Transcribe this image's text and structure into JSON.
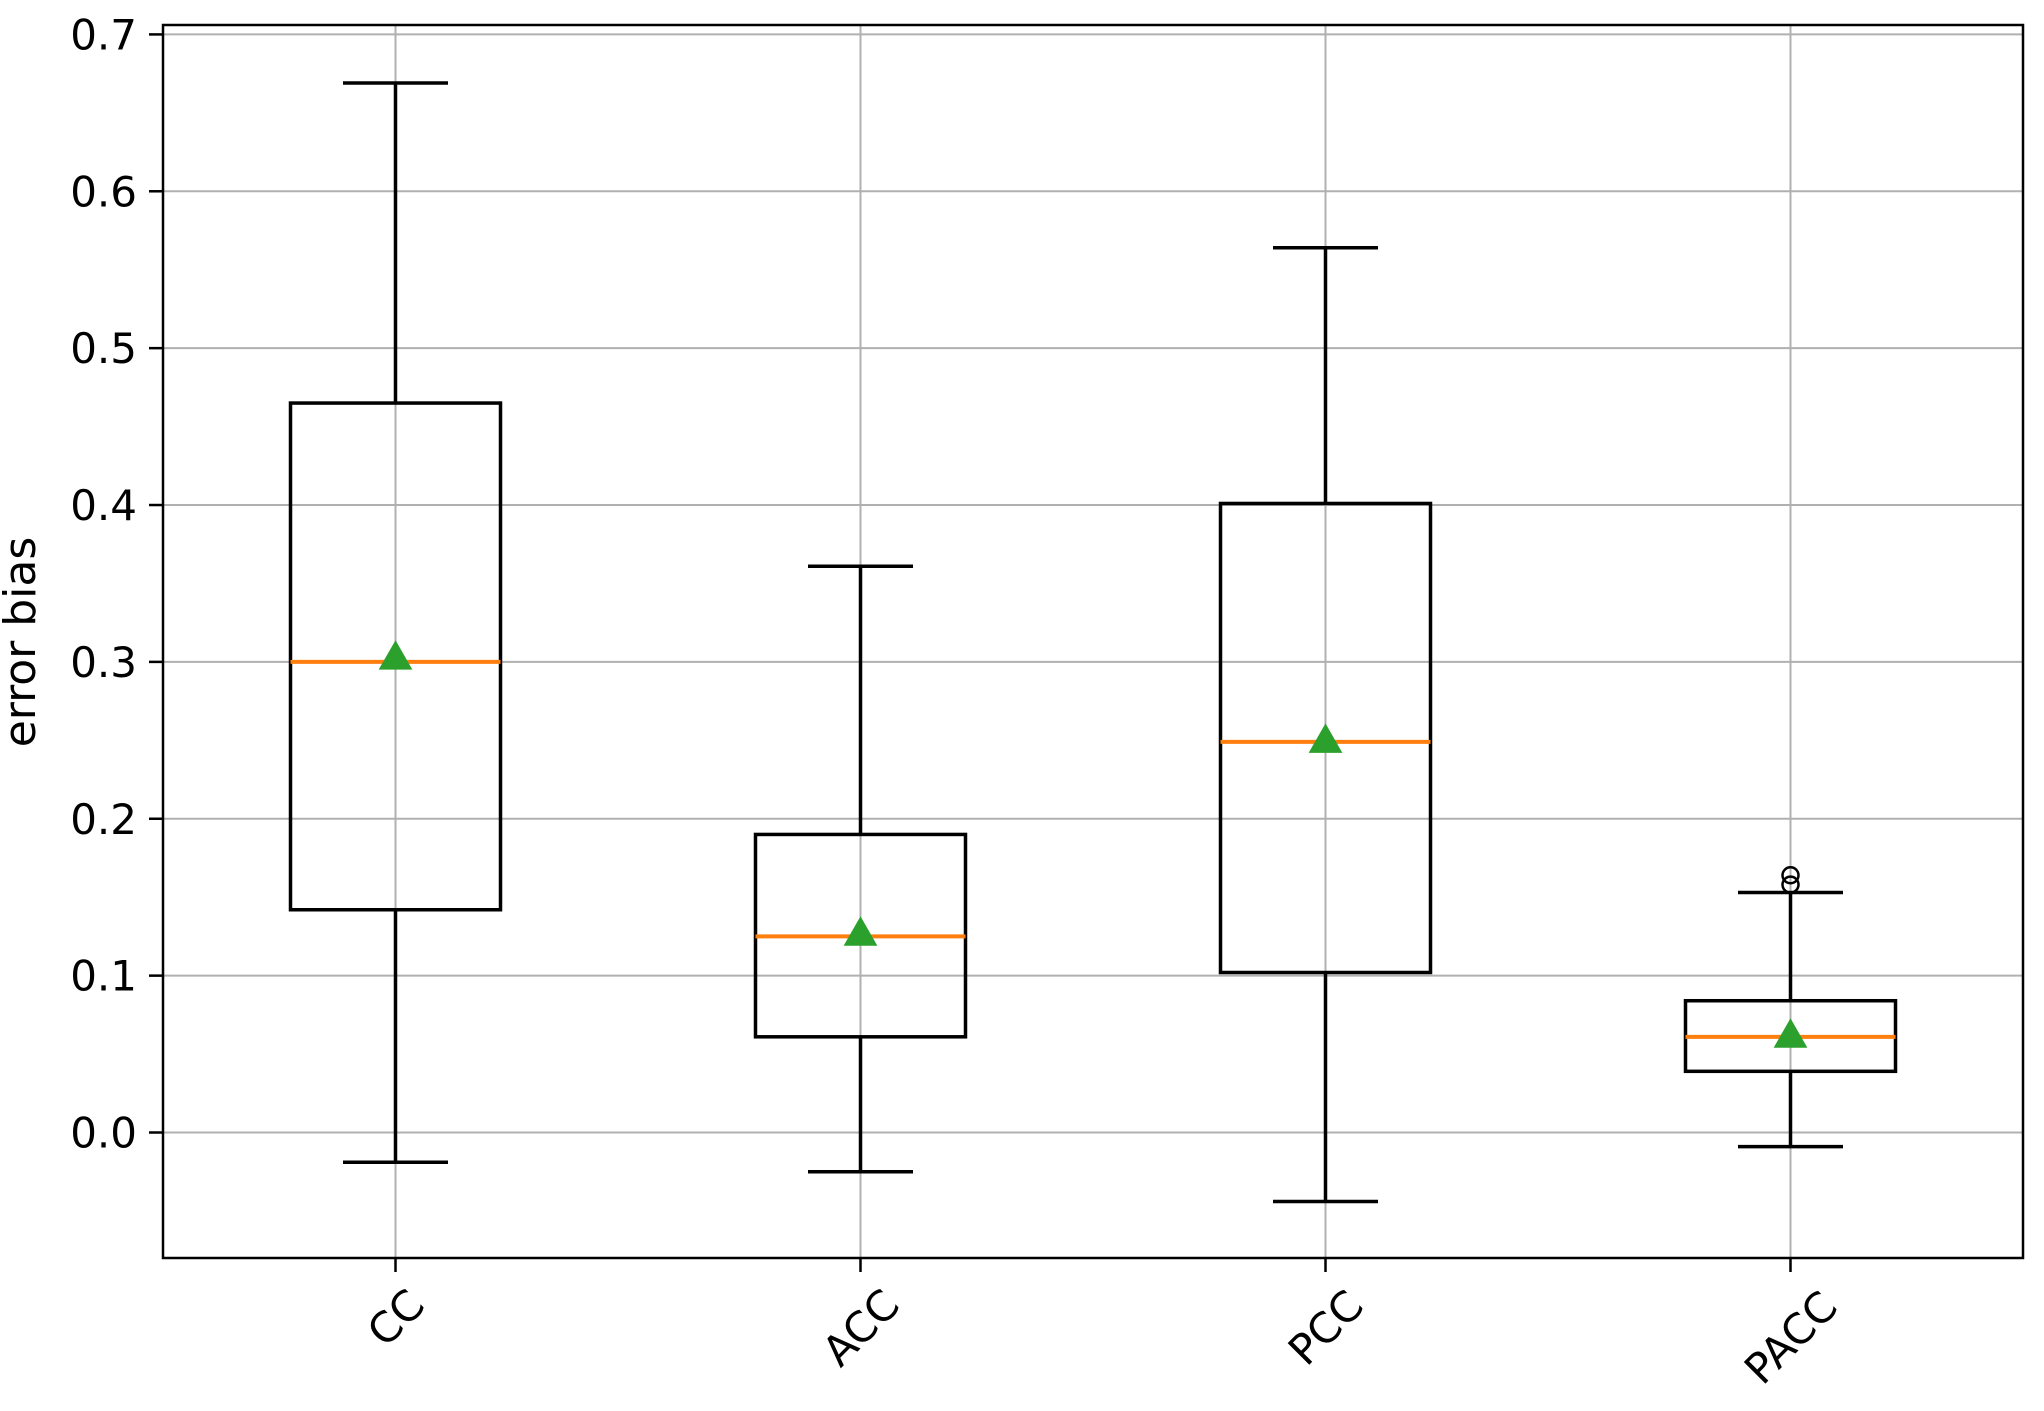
{
  "chart_data": {
    "type": "boxplot",
    "title": "",
    "xlabel": "",
    "ylabel": "error bias",
    "categories": [
      "CC",
      "ACC",
      "PCC",
      "PACC"
    ],
    "ylim": [
      -0.08,
      0.706
    ],
    "yticks": [
      0.0,
      0.1,
      0.2,
      0.3,
      0.4,
      0.5,
      0.6,
      0.7
    ],
    "ytick_labels": [
      "0.0",
      "0.1",
      "0.2",
      "0.3",
      "0.4",
      "0.5",
      "0.6",
      "0.7"
    ],
    "grid": true,
    "grid_axes": "both",
    "legend": null,
    "series": [
      {
        "name": "CC",
        "whisker_low": -0.019,
        "q1": 0.142,
        "median": 0.3,
        "mean": 0.303,
        "q3": 0.465,
        "whisker_high": 0.669,
        "fliers": []
      },
      {
        "name": "ACC",
        "whisker_low": -0.025,
        "q1": 0.061,
        "median": 0.125,
        "mean": 0.127,
        "q3": 0.19,
        "whisker_high": 0.361,
        "fliers": []
      },
      {
        "name": "PCC",
        "whisker_low": -0.044,
        "q1": 0.102,
        "median": 0.249,
        "mean": 0.25,
        "q3": 0.401,
        "whisker_high": 0.564,
        "fliers": []
      },
      {
        "name": "PACC",
        "whisker_low": -0.009,
        "q1": 0.039,
        "median": 0.061,
        "mean": 0.062,
        "q3": 0.084,
        "whisker_high": 0.153,
        "fliers": [
          0.158,
          0.164
        ]
      }
    ],
    "colors": {
      "box": "#000000",
      "whisker": "#000000",
      "median": "#ff7f0e",
      "mean_marker": "#2ca02c",
      "grid": "#b0b0b0",
      "flier": "#000000",
      "spine": "#000000",
      "text": "#000000",
      "background": "#ffffff"
    },
    "marker_styles": {
      "mean": "triangle-up",
      "flier": "open-circle"
    }
  }
}
